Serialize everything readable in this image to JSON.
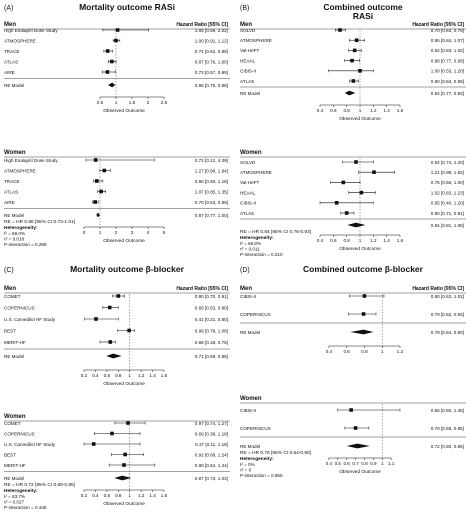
{
  "panels": [
    {
      "tag": "(A)",
      "title": "Mortality outcome RASi",
      "subtitle": "",
      "hr_header": "Hazard Ratio [95% CI]",
      "groups": [
        {
          "label": "Men",
          "xaxis": {
            "min": 0,
            "max": 2.5,
            "ticks": [
              "0.5",
              "1",
              "1.5",
              "2",
              "2.5"
            ],
            "tick_values": [
              0.5,
              1,
              1.5,
              2,
              2.5
            ],
            "label": "Observed Outcome"
          },
          "rows": [
            {
              "study": "High Enalapril Dose Study",
              "hr": 1.05,
              "lo": 0.59,
              "hi": 2.02,
              "text": "1.05 [0.59, 2.02]"
            },
            {
              "study": "ATMOSPHERE",
              "hr": 1.0,
              "lo": 0.91,
              "hi": 1.12,
              "text": "1.00 [0.91, 1.12]"
            },
            {
              "study": "TRACE",
              "hr": 0.74,
              "lo": 0.62,
              "hi": 0.89,
              "text": "0.74 [0.62, 0.89]"
            },
            {
              "study": "ATLAS",
              "hr": 0.87,
              "lo": 0.76,
              "hi": 1.0,
              "text": "0.87 [0.76, 1.00]"
            },
            {
              "study": "AIRE",
              "hr": 0.73,
              "lo": 0.57,
              "hi": 0.99,
              "text": "0.73 [0.57, 0.99]"
            }
          ],
          "pooled": {
            "label": "RE Model",
            "hr": 0.88,
            "lo": 0.75,
            "hi": 0.98,
            "text": "0.88 [0.75, 0.98]"
          }
        },
        {
          "label": "Women",
          "xaxis": {
            "min": 0,
            "max": 5,
            "ticks": [
              "0",
              "1",
              "2",
              "3",
              "4",
              "5"
            ],
            "tick_values": [
              0,
              1,
              2,
              3,
              4,
              5
            ],
            "label": "Observed Outcome"
          },
          "rows": [
            {
              "study": "High Enalapril Dose Study",
              "hr": 0.73,
              "lo": 0.12,
              "hi": 4.39,
              "text": "0.73 [0.12, 4.39]"
            },
            {
              "study": "ATMOSPHERE",
              "hr": 1.27,
              "lo": 0.98,
              "hi": 1.64,
              "text": "1.27 [0.98, 1.64]"
            },
            {
              "study": "TRACE",
              "hr": 0.8,
              "lo": 0.6,
              "hi": 1.18,
              "text": "0.80 [0.60, 1.18]"
            },
            {
              "study": "ATLAS",
              "hr": 1.07,
              "lo": 0.85,
              "hi": 1.35,
              "text": "1.07 [0.85, 1.35]"
            },
            {
              "study": "AIRE",
              "hr": 0.7,
              "lo": 0.53,
              "hi": 0.89,
              "text": "0.70 [0.53, 0.89]"
            }
          ],
          "pooled": {
            "label": "RE Model",
            "hr": 0.87,
            "lo": 0.77,
            "hi": 1.0,
            "text": "0.87 [0.77, 1.00]"
          }
        }
      ],
      "interaction": {
        "re_line": "RE = HR 0.86 [95% CI 0.73-1.01]",
        "heading": "Heterogeneity:",
        "lines": [
          "I² = 69.0%",
          "τ² = 0.018",
          "P-interaction = 0.288"
        ]
      }
    },
    {
      "tag": "(B)",
      "title": "Combined outcome",
      "subtitle": "RASi",
      "hr_header": "Hazard Ratio [95% CI]",
      "groups": [
        {
          "label": "Men",
          "xaxis": {
            "min": 0.4,
            "max": 1.6,
            "ticks": [
              "0.4",
              "0.6",
              "0.8",
              "1",
              "1.2",
              "1.4",
              "1.6"
            ],
            "tick_values": [
              0.4,
              0.6,
              0.8,
              1,
              1.2,
              1.4,
              1.6
            ],
            "label": "Observed Outcome"
          },
          "rows": [
            {
              "study": "SOLVD",
              "hr": 0.7,
              "lo": 0.63,
              "hi": 0.78,
              "text": "0.70 [0.63, 0.78]"
            },
            {
              "study": "ATMOSPHERE",
              "hr": 0.95,
              "lo": 0.84,
              "hi": 1.07,
              "text": "0.95 [0.84, 1.07]"
            },
            {
              "study": "Val-HeFT",
              "hr": 0.92,
              "lo": 0.83,
              "hi": 1.02,
              "text": "0.92 [0.83, 1.02]"
            },
            {
              "study": "HEAAL",
              "hr": 0.88,
              "lo": 0.77,
              "hi": 0.99,
              "text": "0.88 [0.77, 0.99]"
            },
            {
              "study": "CIBIS-II",
              "hr": 1.0,
              "lo": 0.53,
              "hi": 1.2,
              "text": "1.00 [0.53, 1.20]"
            },
            {
              "study": "ATLAS",
              "hr": 0.9,
              "lo": 0.84,
              "hi": 0.98,
              "text": "0.90 [0.84, 0.98]"
            }
          ],
          "pooled": {
            "label": "RE Model",
            "hr": 0.84,
            "lo": 0.77,
            "hi": 0.93,
            "text": "0.84 [0.77, 0.93]"
          }
        },
        {
          "label": "Women",
          "xaxis": {
            "min": 0.4,
            "max": 1.6,
            "ticks": [
              "0.4",
              "0.6",
              "0.8",
              "1",
              "1.2",
              "1.4",
              "1.6"
            ],
            "tick_values": [
              0.4,
              0.6,
              0.8,
              1,
              1.2,
              1.4,
              1.6
            ],
            "label": "Observed Outcome"
          },
          "rows": [
            {
              "study": "SOLVD",
              "hr": 0.94,
              "lo": 0.74,
              "hi": 1.2,
              "text": "0.94 [0.74, 1.20]"
            },
            {
              "study": "ATMOSPHERE",
              "hr": 1.21,
              "lo": 0.98,
              "hi": 1.52,
              "text": "1.21 [0.98, 1.52]"
            },
            {
              "study": "Val-HeFT",
              "hr": 0.75,
              "lo": 0.56,
              "hi": 1.0,
              "text": "0.75 [0.56, 1.00]"
            },
            {
              "study": "HEAAL",
              "hr": 1.02,
              "lo": 0.83,
              "hi": 1.23,
              "text": "1.02 [0.83, 1.23]"
            },
            {
              "study": "CIBIS-II",
              "hr": 0.65,
              "lo": 0.4,
              "hi": 1.2,
              "text": "0.65 [0.40, 1.20]"
            },
            {
              "study": "ATLAS",
              "hr": 0.8,
              "lo": 0.71,
              "hi": 0.91,
              "text": "0.80 [0.71, 0.91]"
            }
          ],
          "pooled": {
            "label": "",
            "hr": 0.94,
            "lo": 0.81,
            "hi": 1.08,
            "text": "0.94 [0.81, 1.08]"
          }
        }
      ],
      "interaction": {
        "re_line": "RE = HR 0.84 [95% CI 0.76-0.93]",
        "heading": "Heterogeneity:",
        "lines": [
          "I² = 66.8%",
          "τ² = 0.011",
          "P-interaction = 0.210"
        ]
      }
    },
    {
      "tag": "(C)",
      "title": "Mortality outcome β-blocker",
      "subtitle": "",
      "hr_header": "Hazard Ratio [95% CI]",
      "groups": [
        {
          "label": "Men",
          "xaxis": {
            "min": 0.2,
            "max": 1.6,
            "ticks": [
              "0.2",
              "0.4",
              "0.6",
              "0.8",
              "1",
              "1.2",
              "1.4",
              "1.6"
            ],
            "tick_values": [
              0.2,
              0.4,
              0.6,
              0.8,
              1,
              1.2,
              1.4,
              1.6
            ],
            "label": "Observed Outcome"
          },
          "rows": [
            {
              "study": "COMET",
              "hr": 0.8,
              "lo": 0.7,
              "hi": 0.91,
              "text": "0.80 [0.70, 0.91]"
            },
            {
              "study": "COPERNICUS",
              "hr": 0.65,
              "lo": 0.53,
              "hi": 0.8,
              "text": "0.65 [0.53, 0.80]"
            },
            {
              "study": "U.S. Carvedilol HF Study",
              "hr": 0.41,
              "lo": 0.21,
              "hi": 0.8,
              "text": "0.41 [0.21, 0.80]"
            },
            {
              "study": "BEST",
              "hr": 0.99,
              "lo": 0.79,
              "hi": 1.08,
              "text": "0.99 [0.79, 1.08]"
            },
            {
              "study": "MERIT-HF",
              "hr": 0.66,
              "lo": 0.48,
              "hi": 0.75,
              "text": "0.66 [0.48, 0.75]"
            }
          ],
          "pooled": {
            "label": "RE Model",
            "hr": 0.71,
            "lo": 0.59,
            "hi": 0.86,
            "text": "0.71 [0.59, 0.86]"
          }
        },
        {
          "label": "Women",
          "xaxis": {
            "min": 0.2,
            "max": 1.6,
            "ticks": [
              "0.2",
              "0.4",
              "0.6",
              "0.8",
              "1",
              "1.2",
              "1.4",
              "1.6"
            ],
            "tick_values": [
              0.2,
              0.4,
              0.6,
              0.8,
              1,
              1.2,
              1.4,
              1.6
            ],
            "label": "Observed Outcome"
          },
          "rows": [
            {
              "study": "COMET",
              "hr": 0.97,
              "lo": 0.74,
              "hi": 1.27,
              "text": "0.97 [0.74, 1.27]"
            },
            {
              "study": "COPERNICUS",
              "hr": 0.69,
              "lo": 0.38,
              "hi": 1.18,
              "text": "0.69 [0.38, 1.18]"
            },
            {
              "study": "U.S. Carvedilol HF Study",
              "hr": 0.37,
              "lo": 0.11,
              "hi": 1.18,
              "text": "0.37 [0.11, 1.18]"
            },
            {
              "study": "BEST",
              "hr": 0.92,
              "lo": 0.68,
              "hi": 1.24,
              "text": "0.92 [0.68, 1.24]"
            },
            {
              "study": "MERIT-HF",
              "hr": 0.9,
              "lo": 0.64,
              "hi": 1.44,
              "text": "0.90 [0.64, 1.44]"
            }
          ],
          "pooled": {
            "label": "RE Model",
            "hr": 0.87,
            "lo": 0.73,
            "hi": 1.03,
            "text": "0.87 [0.73, 1.03]"
          }
        }
      ],
      "interaction": {
        "re_line": "RE = HR 0.72 [95% CI 0.60-0.85]",
        "heading": "Heterogeneity:",
        "lines": [
          "I² = 63.7%",
          "τ² = 0.027",
          "P-interaction = 0.345"
        ]
      }
    },
    {
      "tag": "(D)",
      "title": "Combined outcome β-blocker",
      "subtitle": "",
      "hr_header": "Hazard Ratio [95% CI]",
      "groups": [
        {
          "label": "Men",
          "xaxis": {
            "min": 0.3,
            "max": 1.2,
            "ticks": [
              "0.4",
              "0.6",
              "0.8",
              "1",
              "1.2"
            ],
            "tick_values": [
              0.4,
              0.6,
              0.8,
              1,
              1.2
            ],
            "label": ""
          },
          "rows": [
            {
              "study": "CIBIS-II",
              "hr": 0.8,
              "lo": 0.63,
              "hi": 1.02,
              "text": "0.80 [0.63, 1.02]"
            },
            {
              "study": "COPERNICUS",
              "hr": 0.79,
              "lo": 0.62,
              "hi": 0.93,
              "text": "0.79 [0.62, 0.93]"
            }
          ],
          "pooled": {
            "label": "RE Model",
            "hr": 0.79,
            "lo": 0.64,
            "hi": 0.9,
            "text": "0.79 [0.64, 0.90]"
          }
        },
        {
          "label": "Women",
          "xaxis": {
            "min": 0.3,
            "max": 1.2,
            "ticks": [
              "0.4",
              "0.5",
              "0.6",
              "0.7",
              "0.8",
              "0.9",
              "1",
              "1.1"
            ],
            "tick_values": [
              0.4,
              0.5,
              0.6,
              0.7,
              0.8,
              0.9,
              1,
              1.1
            ],
            "label": "Observed Outcome"
          },
          "rows": [
            {
              "study": "CIBIS-II",
              "hr": 0.65,
              "lo": 0.5,
              "hi": 1.45,
              "text": "0.65 [0.50, 1.45]"
            },
            {
              "study": "COPERNICUS",
              "hr": 0.7,
              "lo": 0.58,
              "hi": 0.85,
              "text": "0.70 [0.58, 0.85]"
            }
          ],
          "pooled": {
            "label": "RE Model",
            "hr": 0.72,
            "lo": 0.6,
            "hi": 0.86,
            "text": "0.72 [0.60, 0.86]"
          }
        }
      ],
      "interaction": {
        "re_line": "RE = HR 0.76 [95% CI 0.64-0.90]",
        "heading": "Heterogeneity:",
        "lines": [
          "I² = 0%",
          "τ² = 0",
          "P-interaction = 0.855"
        ]
      }
    }
  ],
  "chart_data": {
    "type": "forest",
    "reference_line": 1,
    "note": "Four forest plots (A–D), each with Men and Women subgroups; point = hazard ratio, bar = 95% CI, diamond = random-effects pooled estimate."
  }
}
